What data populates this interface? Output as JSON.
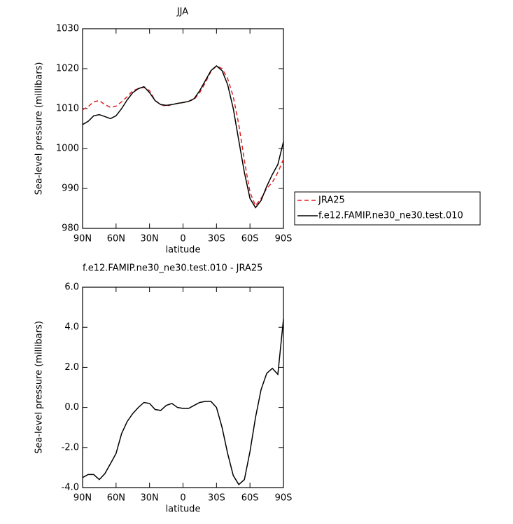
{
  "chart_data": [
    {
      "type": "line",
      "title": "JJA",
      "xlabel": "latitude",
      "ylabel": "Sea-level pressure (millibars)",
      "x": [
        90,
        85,
        80,
        75,
        70,
        65,
        60,
        55,
        50,
        45,
        40,
        35,
        30,
        25,
        20,
        15,
        10,
        5,
        0,
        -5,
        -10,
        -15,
        -20,
        -25,
        -30,
        -35,
        -40,
        -45,
        -50,
        -55,
        -60,
        -65,
        -70,
        -75,
        -80,
        -85,
        -90
      ],
      "xlim": [
        90,
        -90
      ],
      "xticks": [
        {
          "value": 90,
          "label": "90N"
        },
        {
          "value": 60,
          "label": "60N"
        },
        {
          "value": 30,
          "label": "30N"
        },
        0,
        {
          "value": -30,
          "label": "30S"
        },
        {
          "value": -60,
          "label": "60S"
        },
        {
          "value": -90,
          "label": "90S"
        }
      ],
      "ylim": [
        980,
        1030
      ],
      "yticks": [
        980,
        990,
        1000,
        1010,
        1020,
        1030
      ],
      "series": [
        {
          "name": "JRA25",
          "color": "#e02020",
          "dash": true,
          "values": [
            1009.7,
            1010.5,
            1011.7,
            1012,
            1011,
            1010.3,
            1010.6,
            1011.7,
            1013,
            1014.5,
            1015,
            1015.3,
            1014.5,
            1012,
            1011,
            1010.6,
            1011,
            1011.3,
            1011.5,
            1011.8,
            1012.3,
            1014,
            1016.5,
            1019.3,
            1020.7,
            1020,
            1017.5,
            1013,
            1006,
            997,
            989,
            985.7,
            987.5,
            990,
            991.5,
            994,
            997.3
          ]
        },
        {
          "name": "f.e12.FAMIP.ne30_ne30.test.010",
          "color": "#000000",
          "dash": false,
          "values": [
            1006,
            1006.8,
            1008.2,
            1008.5,
            1008,
            1007.5,
            1008.2,
            1010,
            1012.2,
            1014,
            1015,
            1015.5,
            1014,
            1012,
            1011,
            1010.8,
            1011,
            1011.3,
            1011.5,
            1011.8,
            1012.5,
            1014.5,
            1017,
            1019.5,
            1020.7,
            1019.5,
            1016,
            1010,
            1002,
            994,
            987.5,
            985.2,
            987,
            990.5,
            993.5,
            996,
            1001.7
          ]
        }
      ]
    },
    {
      "type": "line",
      "title": "f.e12.FAMIP.ne30_ne30.test.010 - JRA25",
      "xlabel": "latitude",
      "ylabel": "Sea-level pressure (millibars)",
      "x": [
        90,
        85,
        80,
        75,
        70,
        65,
        60,
        55,
        50,
        45,
        40,
        35,
        30,
        25,
        20,
        15,
        10,
        5,
        0,
        -5,
        -10,
        -15,
        -20,
        -25,
        -30,
        -35,
        -40,
        -45,
        -50,
        -55,
        -60,
        -65,
        -70,
        -75,
        -80,
        -85,
        -90
      ],
      "xlim": [
        90,
        -90
      ],
      "xticks": [
        {
          "value": 90,
          "label": "90N"
        },
        {
          "value": 60,
          "label": "60N"
        },
        {
          "value": 30,
          "label": "30N"
        },
        0,
        {
          "value": -30,
          "label": "30S"
        },
        {
          "value": -60,
          "label": "60S"
        },
        {
          "value": -90,
          "label": "90S"
        }
      ],
      "ylim": [
        -4,
        6
      ],
      "yticks": [
        {
          "value": -4,
          "label": "-4.0"
        },
        {
          "value": -2,
          "label": "-2.0"
        },
        {
          "value": 0,
          "label": "0.0"
        },
        {
          "value": 2,
          "label": "2.0"
        },
        {
          "value": 4,
          "label": "4.0"
        },
        {
          "value": 6,
          "label": "6.0"
        }
      ],
      "series": [
        {
          "color": "#000000",
          "dash": false,
          "values": [
            -3.5,
            -3.35,
            -3.35,
            -3.6,
            -3.3,
            -2.8,
            -2.3,
            -1.3,
            -0.7,
            -0.3,
            0,
            0.25,
            0.2,
            -0.1,
            -0.15,
            0.1,
            0.2,
            0,
            -0.05,
            -0.05,
            0.1,
            0.25,
            0.3,
            0.3,
            0,
            -1,
            -2.3,
            -3.4,
            -3.85,
            -3.6,
            -2.2,
            -0.5,
            0.9,
            1.7,
            1.95,
            1.65,
            4.4
          ]
        }
      ]
    }
  ]
}
